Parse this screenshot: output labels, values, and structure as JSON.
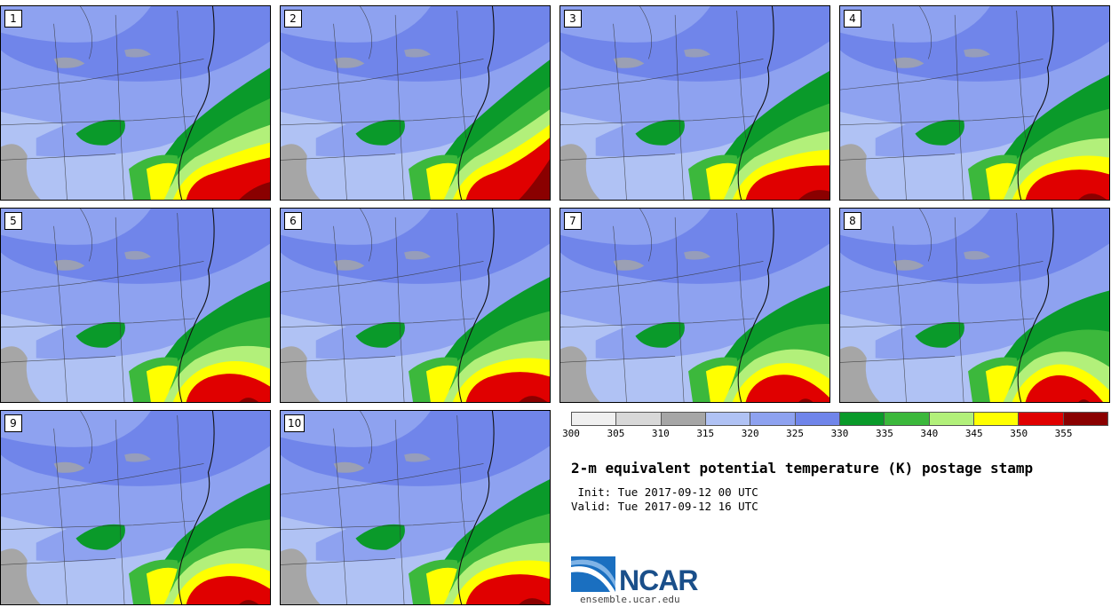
{
  "title": "2-m equivalent potential temperature (K) postage stamp",
  "init": " Init: Tue 2017-09-12 00 UTC",
  "valid": "Valid: Tue 2017-09-12 16 UTC",
  "org": "NCAR",
  "url": "ensemble.ucar.edu",
  "panels": [
    {
      "label": "1",
      "warm": 1.0
    },
    {
      "label": "2",
      "warm": 1.15
    },
    {
      "label": "3",
      "warm": 0.95
    },
    {
      "label": "4",
      "warm": 0.9
    },
    {
      "label": "5",
      "warm": 0.85
    },
    {
      "label": "6",
      "warm": 0.9
    },
    {
      "label": "7",
      "warm": 0.8
    },
    {
      "label": "8",
      "warm": 0.75
    },
    {
      "label": "9",
      "warm": 0.85
    },
    {
      "label": "10",
      "warm": 0.9
    }
  ],
  "colorbar": {
    "ticks": [
      "300",
      "305",
      "310",
      "315",
      "320",
      "325",
      "330",
      "335",
      "340",
      "345",
      "350",
      "355"
    ],
    "colors": [
      "#f0f0f0",
      "#d8d8d8",
      "#a6a6a6",
      "#b0c2f4",
      "#8ea2f0",
      "#7085ea",
      "#0a9a2a",
      "#3cb83c",
      "#b2f07a",
      "#ffff00",
      "#e00000",
      "#8a0000"
    ]
  }
}
